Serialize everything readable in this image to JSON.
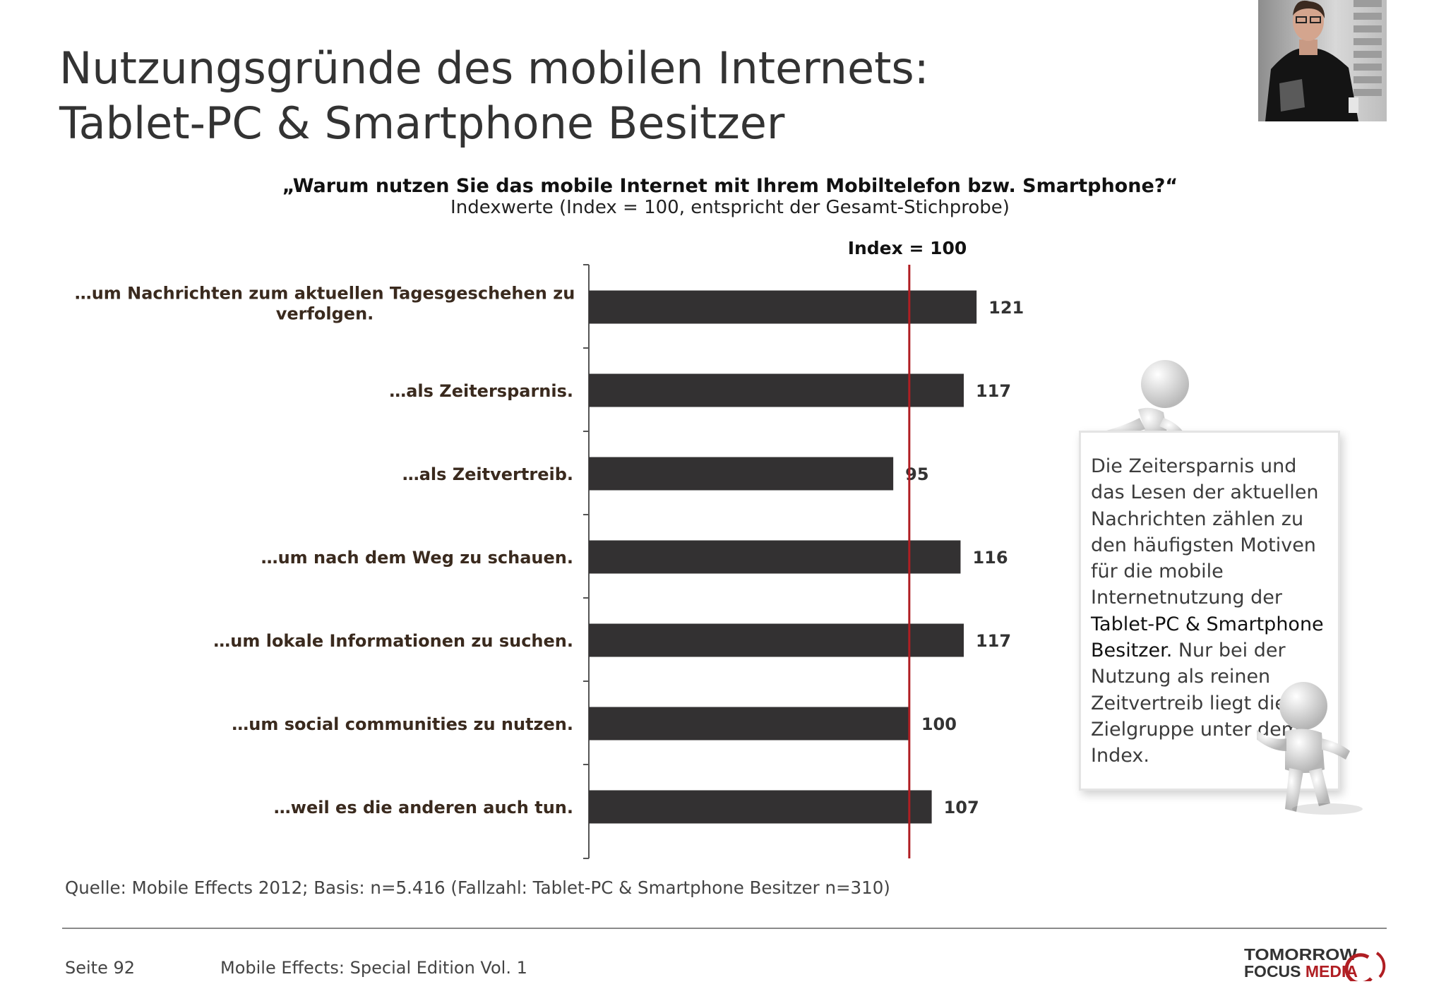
{
  "slide": {
    "title_line1": "Nutzungsgründe des mobilen Internets:",
    "title_line2": "Tablet-PC & Smartphone Besitzer",
    "question": "„Warum nutzen Sie das mobile Internet mit Ihrem Mobiltelefon bzw. Smartphone?“",
    "subtitle": "Indexwerte (Index = 100, entspricht der Gesamt-Stichprobe)",
    "callout": {
      "part1": "Die Zeitersparnis und das Lesen der aktuellen Nachrichten zählen zu den häufigsten Motiven für die mobile Internetnutzung der ",
      "part2": "Tablet-PC & Smartphone Besitzer.",
      "part3": " Nur bei der Nutzung als reinen Zeitvertreib liegt diese Zielgruppe unter dem Index."
    },
    "source": "Quelle: Mobile Effects 2012; Basis: n=5.416 (Fallzahl: Tablet-PC & Smartphone Besitzer n=310)",
    "page_number": "Seite 92",
    "edition": "Mobile Effects: Special Edition Vol. 1",
    "logo_line1": "TOMORROW",
    "logo_line2_a": "FOCUS ",
    "logo_line2_b": "MEDIA"
  },
  "chart_data": {
    "type": "bar",
    "orientation": "horizontal",
    "categories": [
      [
        "…um Nachrichten zum aktuellen Tagesgeschehen zu",
        "verfolgen."
      ],
      [
        "…als Zeitersparnis."
      ],
      [
        "…als Zeitvertreib."
      ],
      [
        "…um nach dem Weg zu schauen."
      ],
      [
        "…um lokale Informationen zu suchen."
      ],
      [
        "…um social communities zu nutzen."
      ],
      [
        "…weil es die anderen auch tun."
      ]
    ],
    "values": [
      121,
      117,
      95,
      116,
      117,
      100,
      107
    ],
    "reference_line": {
      "value": 100,
      "label": "Index = 100",
      "color": "#b01e23"
    },
    "bar_color": "#333132",
    "grid": false,
    "legend": "none"
  },
  "colors": {
    "accent_red": "#b01e23",
    "title_text": "#333333",
    "category_text": "#3a2a1e"
  },
  "icons": {
    "photo": "businessman-with-tablet-photo",
    "figure_top": "3d-white-figure-climbing-icon",
    "figure_bottom": "3d-white-figure-presenting-icon"
  }
}
